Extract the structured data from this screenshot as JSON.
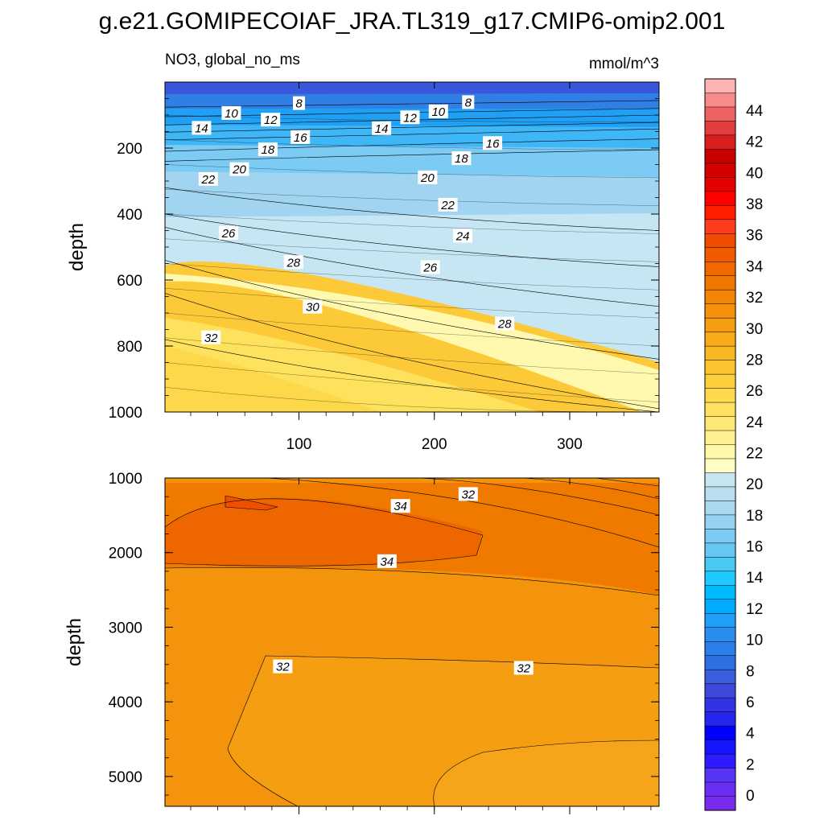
{
  "figure": {
    "title": "g.e21.GOMIPECOIAF_JRA.TL319_g17.CMIP6-omip2.001",
    "left_string": "NO3, global_no_ms",
    "right_string": "mmol/m^3"
  },
  "chart_data": [
    {
      "type": "contour",
      "panel": "upper",
      "variable": "NO3",
      "units": "mmol/m^3",
      "ylabel": "depth",
      "xlabel": "",
      "xlim": [
        1,
        366
      ],
      "ylim": [
        1000,
        0
      ],
      "x_ticks": [
        100,
        200,
        300
      ],
      "y_ticks": [
        200,
        400,
        600,
        800,
        1000
      ],
      "contour_interval": 1,
      "isolines": [
        {
          "level": 8,
          "depth_start": 76,
          "depth_end": 56
        },
        {
          "level": 10,
          "depth_start": 105,
          "depth_end": 80
        },
        {
          "level": 12,
          "depth_start": 130,
          "depth_end": 100
        },
        {
          "level": 14,
          "depth_start": 152,
          "depth_end": 122
        },
        {
          "level": 16,
          "depth_start": 175,
          "depth_end": 142
        },
        {
          "level": 18,
          "depth_start": 210,
          "depth_end": 172
        },
        {
          "level": 20,
          "depth_start": 240,
          "depth_end": 205
        },
        {
          "level": 22,
          "depth_start": 320,
          "depth_end": 450
        },
        {
          "level": 24,
          "depth_start": 400,
          "depth_end": 560
        },
        {
          "level": 26,
          "depth_start": 440,
          "depth_end": 680
        },
        {
          "level": 28,
          "depth_start": 540,
          "depth_end": 840
        },
        {
          "level": 30,
          "depth_start": 640,
          "depth_end": 990
        },
        {
          "level": 32,
          "depth_start": 780,
          "depth_end": 1000
        }
      ],
      "contour_labels": [
        {
          "text": "8",
          "x": 100,
          "y": 65
        },
        {
          "text": "8",
          "x": 225,
          "y": 62
        },
        {
          "text": "10",
          "x": 50,
          "y": 95
        },
        {
          "text": "10",
          "x": 203,
          "y": 90
        },
        {
          "text": "12",
          "x": 79,
          "y": 115
        },
        {
          "text": "12",
          "x": 182,
          "y": 108
        },
        {
          "text": "14",
          "x": 28,
          "y": 140
        },
        {
          "text": "14",
          "x": 161,
          "y": 141
        },
        {
          "text": "16",
          "x": 101,
          "y": 168
        },
        {
          "text": "16",
          "x": 243,
          "y": 186
        },
        {
          "text": "18",
          "x": 77,
          "y": 205
        },
        {
          "text": "18",
          "x": 220,
          "y": 232
        },
        {
          "text": "20",
          "x": 56,
          "y": 265
        },
        {
          "text": "20",
          "x": 195,
          "y": 290
        },
        {
          "text": "22",
          "x": 33,
          "y": 295
        },
        {
          "text": "22",
          "x": 210,
          "y": 373
        },
        {
          "text": "24",
          "x": 221,
          "y": 467
        },
        {
          "text": "26",
          "x": 48,
          "y": 458
        },
        {
          "text": "26",
          "x": 197,
          "y": 562
        },
        {
          "text": "28",
          "x": 96,
          "y": 547
        },
        {
          "text": "28",
          "x": 252,
          "y": 733
        },
        {
          "text": "30",
          "x": 110,
          "y": 682
        },
        {
          "text": "32",
          "x": 35,
          "y": 775
        }
      ]
    },
    {
      "type": "contour",
      "panel": "lower",
      "variable": "NO3",
      "units": "mmol/m^3",
      "ylabel": "depth",
      "xlabel": "",
      "xlim": [
        1,
        366
      ],
      "ylim": [
        5400,
        1000
      ],
      "x_ticks": [
        100,
        200,
        300
      ],
      "y_ticks": [
        1000,
        2000,
        3000,
        4000,
        5000
      ],
      "contour_interval": 1,
      "isolines": [
        {
          "level": 31,
          "depth_start": 3900,
          "depth_end": 4550
        },
        {
          "level": 32,
          "depth_start": 3600,
          "depth_end": 3560
        },
        {
          "level": 33,
          "depth_start": 2250,
          "depth_end": 2560
        },
        {
          "level": 34,
          "depth_start": 1650,
          "depth_end": 1900
        }
      ],
      "contour_labels": [
        {
          "text": "32",
          "x": 225,
          "y": 1220
        },
        {
          "text": "34",
          "x": 175,
          "y": 1380
        },
        {
          "text": "34",
          "x": 165,
          "y": 2120
        },
        {
          "text": "32",
          "x": 88,
          "y": 3530
        },
        {
          "text": "32",
          "x": 266,
          "y": 3550
        }
      ]
    }
  ],
  "colorbar": {
    "labels": [
      "0",
      "2",
      "4",
      "6",
      "8",
      "10",
      "12",
      "14",
      "16",
      "18",
      "20",
      "22",
      "24",
      "26",
      "28",
      "30",
      "32",
      "34",
      "36",
      "38",
      "40",
      "42",
      "44"
    ],
    "colors": [
      "#7b2bf0",
      "#6a2ff3",
      "#5734f6",
      "#2d1aff",
      "#1515ff",
      "#0000ff",
      "#2525f0",
      "#3333e6",
      "#3f48dc",
      "#3b5fdc",
      "#2e6fe2",
      "#2b7fe8",
      "#2a8ef0",
      "#1f9ff8",
      "#00aaff",
      "#00baff",
      "#1fc8ff",
      "#48c8f2",
      "#66c7f0",
      "#7dcbf2",
      "#96d2f0",
      "#aad8f0",
      "#b8def0",
      "#c8e6f2",
      "#fffec2",
      "#fff8a8",
      "#fff190",
      "#ffe878",
      "#ffe060",
      "#ffd84c",
      "#fcd03c",
      "#fbc430",
      "#f9b823",
      "#f7ab1b",
      "#f59e12",
      "#f4900c",
      "#f28406",
      "#f07600",
      "#f06800",
      "#f05a00",
      "#f04c00",
      "#ff3c1e",
      "#ff1e00",
      "#ff0000",
      "#e80000",
      "#d40000",
      "#c80000",
      "#d81e1e",
      "#e23c3c",
      "#ee6262",
      "#f78b8b",
      "#ffb4b4"
    ]
  }
}
